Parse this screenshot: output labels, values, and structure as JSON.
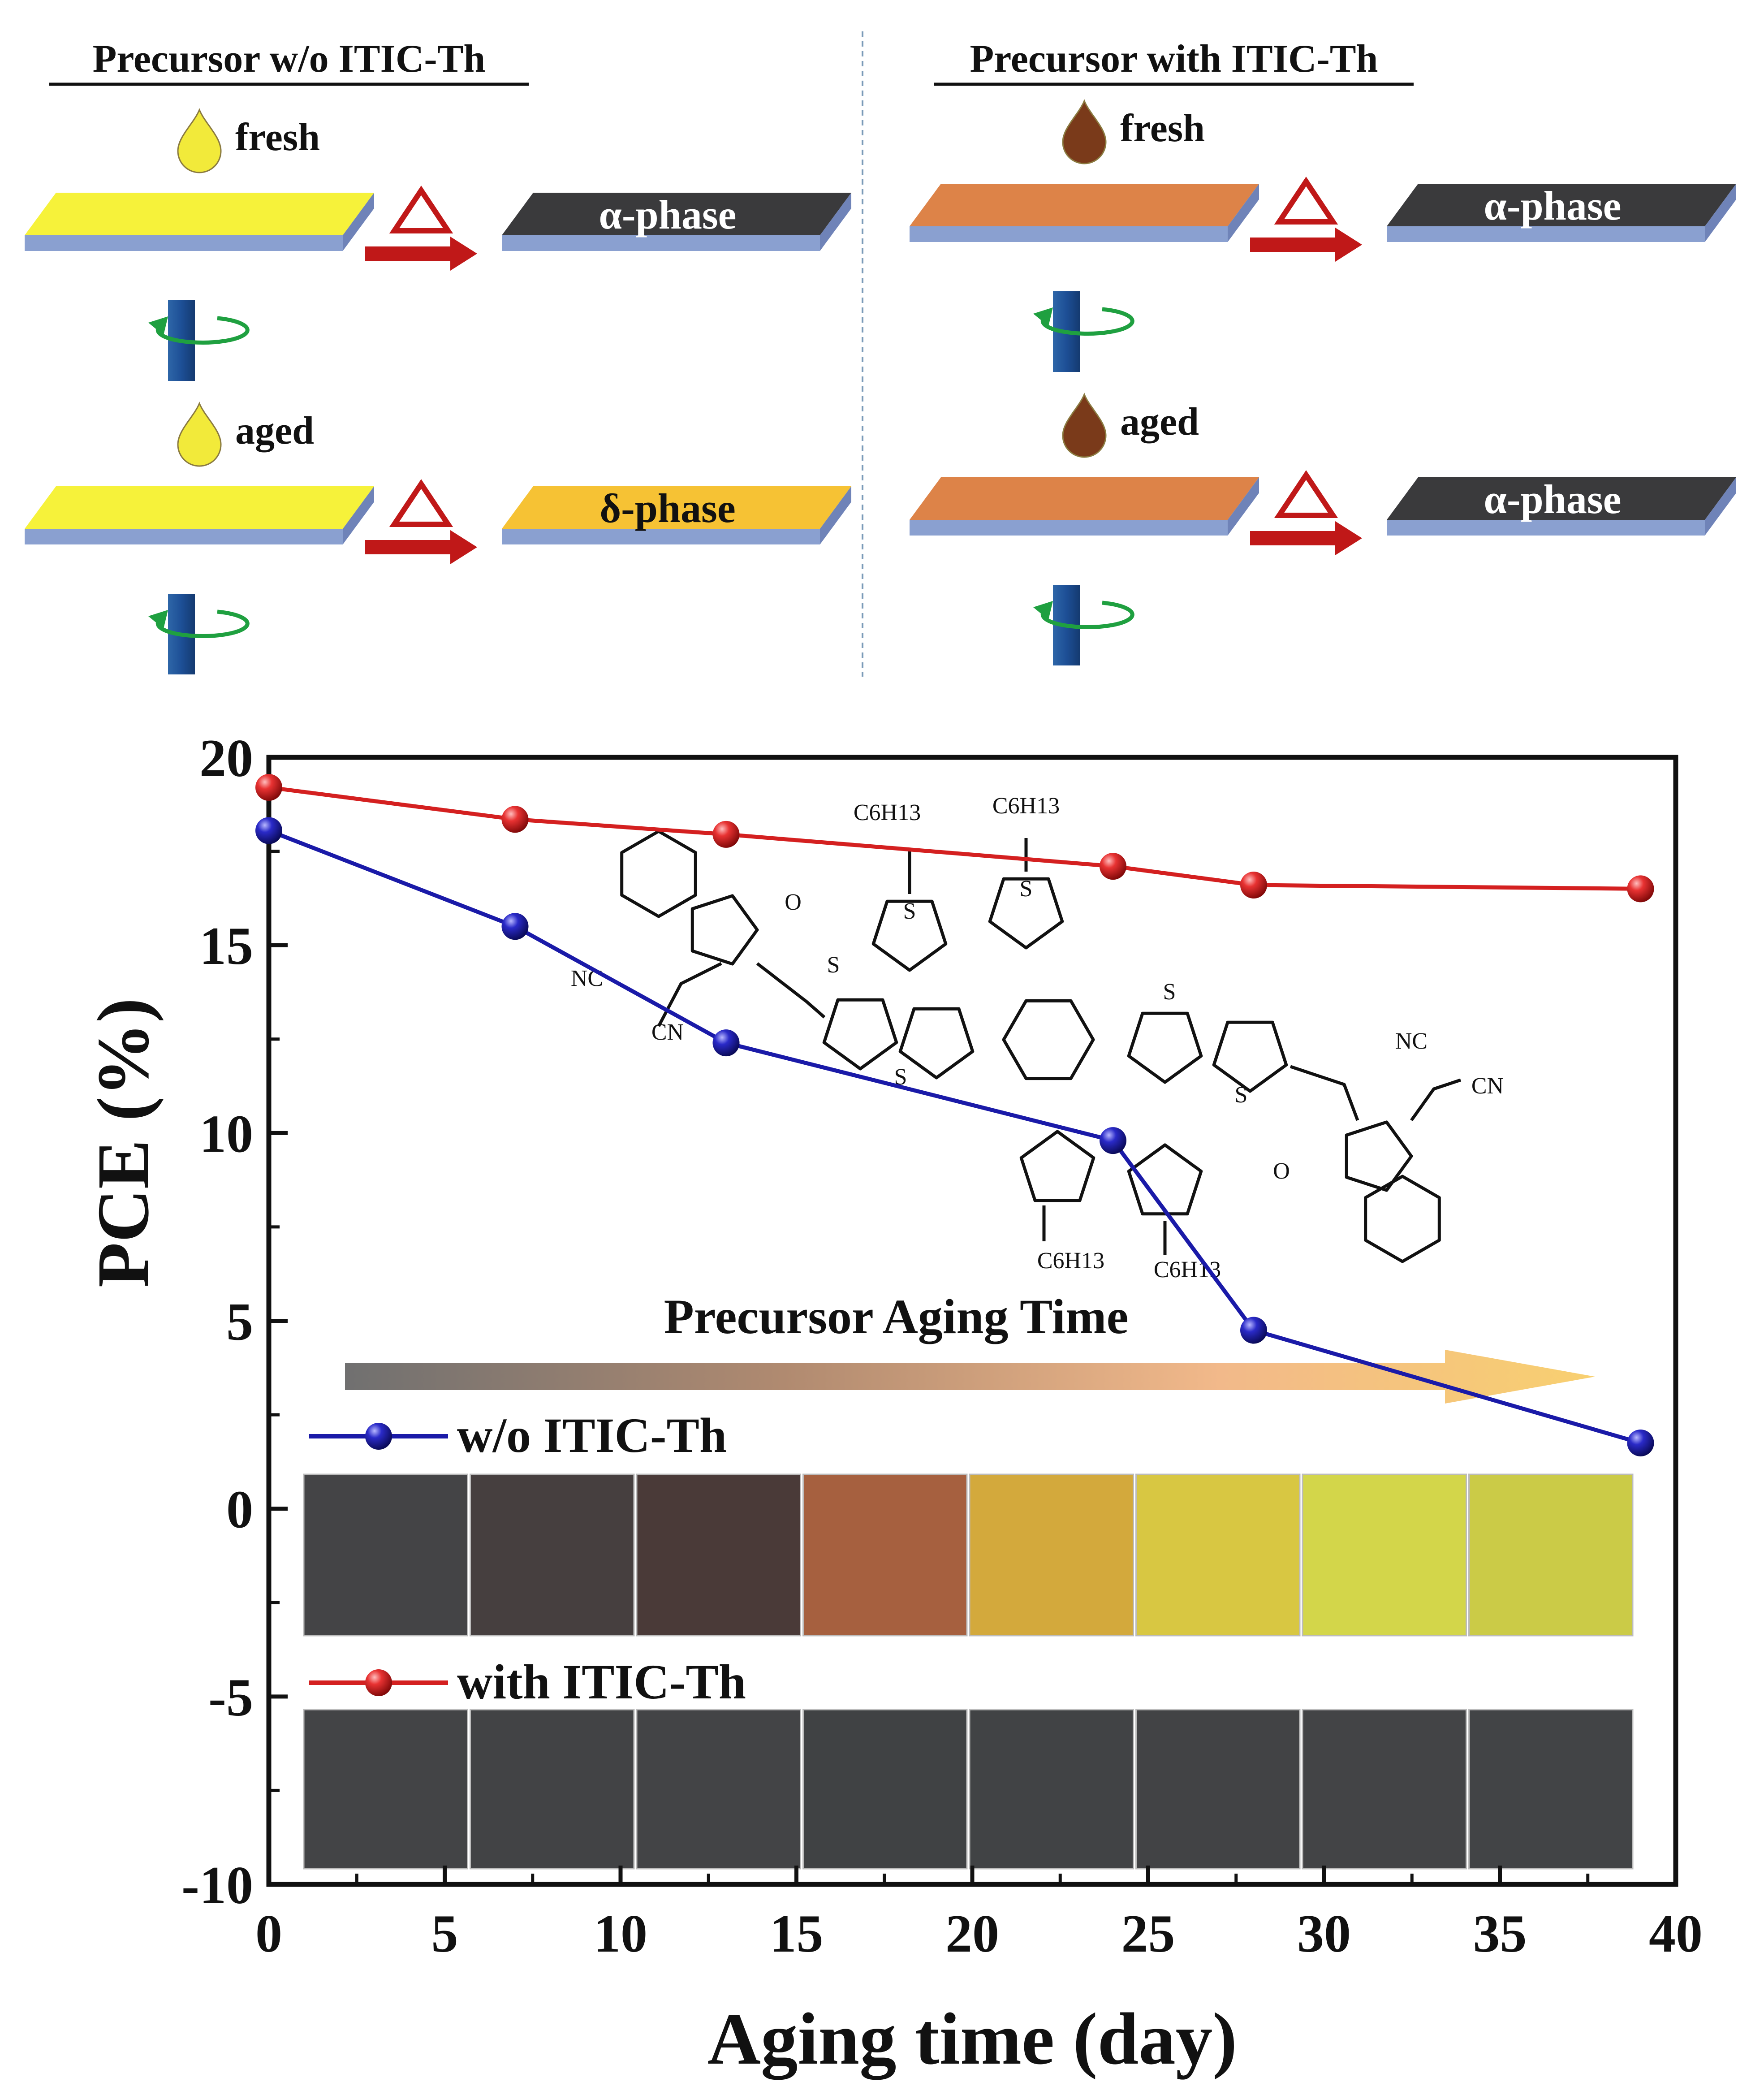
{
  "schematic": {
    "left": {
      "title": "Precursor w/o ITIC-Th",
      "rows": [
        {
          "label": "fresh",
          "phase": "α-phase",
          "substrate_color": "#f6f23a",
          "drop_color": "#f2ea3a",
          "film_color": "#3a3a3c"
        },
        {
          "label": "aged",
          "phase": "δ-phase",
          "substrate_color": "#f6f23a",
          "drop_color": "#f2ea3a",
          "film_color": "#f6c234"
        }
      ]
    },
    "right": {
      "title": "Precursor with ITIC-Th",
      "rows": [
        {
          "label": "fresh",
          "phase": "α-phase",
          "substrate_color": "#dd8348",
          "drop_color": "#7a3a1a",
          "film_color": "#3a3a3c"
        },
        {
          "label": "aged",
          "phase": "α-phase",
          "substrate_color": "#dd8348",
          "drop_color": "#7a3a1a",
          "film_color": "#3a3a3c"
        }
      ]
    },
    "heat_symbol": "Δ"
  },
  "molecule": {
    "substituent_labels": [
      "C6H13",
      "C6H13",
      "C6H13",
      "C6H13"
    ],
    "atom_labels": [
      "O",
      "NC",
      "CN",
      "S",
      "S",
      "S",
      "S",
      "S",
      "S",
      "NC",
      "CN",
      "O"
    ]
  },
  "aging_arrow_label": "Precursor Aging Time",
  "chart_data": {
    "type": "line",
    "xlabel": "Aging time (day)",
    "ylabel": "PCE (%)",
    "xlim": [
      0,
      40
    ],
    "ylim": [
      -10,
      20
    ],
    "xticks": [
      0,
      5,
      10,
      15,
      20,
      25,
      30,
      35,
      40
    ],
    "yticks": [
      -10,
      -5,
      0,
      5,
      10,
      15,
      20
    ],
    "grid": false,
    "series": [
      {
        "name": "with ITIC-Th",
        "color": "#d42020",
        "x": [
          0,
          7,
          13,
          24,
          28,
          39
        ],
        "y": [
          19.2,
          18.35,
          17.95,
          17.1,
          16.6,
          16.5
        ]
      },
      {
        "name": "w/o ITIC-Th",
        "color": "#1a1aa8",
        "x": [
          0,
          7,
          13,
          24,
          28,
          39
        ],
        "y": [
          18.05,
          15.5,
          12.4,
          9.8,
          4.75,
          1.75
        ]
      }
    ],
    "film_photos": {
      "w/o ITIC-Th": [
        "#444446",
        "#463f3f",
        "#4a3a38",
        "#a6603f",
        "#d3a93c",
        "#d8c742",
        "#d3d64a",
        "#cbcb47"
      ],
      "with ITIC-Th": [
        "#434446",
        "#424345",
        "#434446",
        "#404244",
        "#414345",
        "#424345",
        "#434446",
        "#424446"
      ]
    }
  }
}
